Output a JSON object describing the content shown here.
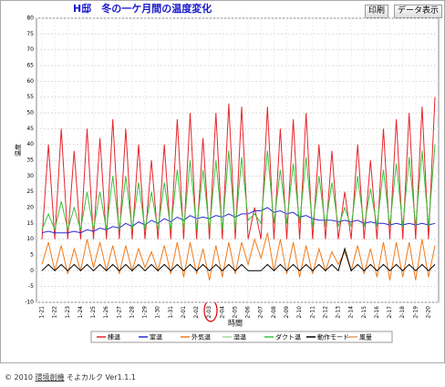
{
  "chart_data": {
    "type": "line",
    "title": "H邸　冬の一ケ月間の温度変化",
    "xlabel": "時間",
    "ylabel": "温度",
    "categories": [
      "1-21",
      null,
      "1-22",
      null,
      "1-23",
      null,
      "1-24",
      null,
      "1-25",
      null,
      "1-26",
      null,
      "1-27",
      null,
      "1-28",
      null,
      "1-29",
      null,
      "1-30",
      null,
      "1-31",
      null,
      "2-01",
      null,
      "2-02",
      null,
      "2-03",
      null,
      "2-04",
      null,
      "2-05",
      null,
      "2-06",
      null,
      "2-07",
      null,
      "2-08",
      null,
      "2-09",
      null,
      "2-10",
      null,
      "2-11",
      null,
      "2-12",
      null,
      "2-13",
      null,
      "2-14",
      null,
      "2-15",
      null,
      "2-16",
      null,
      "2-17",
      null,
      "2-18",
      null,
      "2-19",
      null,
      "2-20",
      null
    ],
    "series": [
      {
        "name": "棟温",
        "color": "#e8242a",
        "values": [
          10,
          40,
          10,
          45,
          10,
          38,
          10,
          45,
          10,
          42,
          10,
          48,
          10,
          45,
          10,
          40,
          10,
          35,
          10,
          40,
          10,
          48,
          10,
          50,
          10,
          42,
          10,
          50,
          10,
          53,
          10,
          52,
          10,
          20,
          10,
          52,
          10,
          45,
          10,
          48,
          10,
          50,
          10,
          40,
          10,
          38,
          10,
          25,
          10,
          40,
          10,
          35,
          10,
          45,
          10,
          48,
          10,
          50,
          10,
          52,
          10,
          55
        ]
      },
      {
        "name": "室温",
        "color": "#2b2bd6",
        "values": [
          12,
          12.5,
          12,
          12,
          12,
          12.5,
          12,
          13,
          12.5,
          13.5,
          13,
          14,
          13.5,
          15,
          14,
          15.5,
          14.5,
          16,
          15,
          16.5,
          15.5,
          17,
          16,
          17.5,
          16.5,
          17,
          16.5,
          17.5,
          17,
          18,
          17,
          18,
          18,
          19,
          19,
          20,
          18.5,
          19,
          18,
          18.5,
          17,
          17.5,
          16.5,
          16,
          16,
          16,
          15.5,
          16,
          15.5,
          16,
          15,
          15.5,
          15,
          15,
          14.5,
          15,
          14.5,
          15,
          14.5,
          15,
          14.5,
          15
        ]
      },
      {
        "name": "外気温",
        "color": "#f07a1a",
        "values": [
          2,
          9,
          0,
          8,
          -1,
          7,
          0,
          10,
          1,
          9,
          0,
          8,
          -1,
          8,
          0,
          7,
          1,
          6,
          0,
          8,
          -1,
          9,
          -2,
          9,
          -1,
          7,
          -3,
          8,
          -2,
          9,
          -1,
          9,
          2,
          10,
          4,
          12,
          0,
          10,
          -1,
          9,
          -2,
          8,
          -1,
          7,
          0,
          6,
          2,
          6,
          0,
          8,
          -1,
          7,
          -2,
          9,
          -3,
          9,
          -2,
          9,
          -3,
          10,
          -2,
          8
        ]
      },
      {
        "name": "湿温",
        "color": "#9fd89a",
        "values": [
          null,
          null,
          null,
          null,
          null,
          null,
          null,
          null,
          null,
          null,
          null,
          null,
          null,
          null,
          null,
          null,
          null,
          null,
          null,
          null,
          null,
          null,
          null,
          null,
          null,
          null,
          null,
          null,
          null,
          null,
          null,
          null,
          null,
          null,
          null,
          null,
          null,
          null,
          null,
          null,
          null,
          null,
          null,
          null,
          null,
          null,
          null,
          null,
          null,
          null,
          null,
          null,
          null,
          null,
          null,
          null,
          null,
          null,
          null,
          null,
          null,
          null
        ]
      },
      {
        "name": "ダクト温",
        "color": "#3cc23c",
        "values": [
          13,
          18,
          13,
          22,
          13,
          20,
          13,
          25,
          13,
          25,
          13,
          30,
          13,
          30,
          13,
          28,
          13,
          25,
          13,
          28,
          13,
          32,
          13,
          35,
          13,
          32,
          13,
          35,
          13,
          38,
          13,
          36,
          16,
          18,
          15,
          38,
          15,
          32,
          15,
          34,
          15,
          36,
          14,
          30,
          14,
          28,
          14,
          20,
          14,
          30,
          14,
          26,
          14,
          32,
          14,
          34,
          14,
          36,
          14,
          38,
          14,
          40
        ]
      },
      {
        "name": "動作モード",
        "color": "#000000",
        "values": [
          0,
          2,
          0,
          2,
          0,
          2,
          0,
          2,
          0,
          2,
          0,
          2,
          0,
          2,
          0,
          2,
          0,
          2,
          0,
          2,
          0,
          2,
          0,
          2,
          0,
          2,
          0,
          2,
          0,
          2,
          0,
          2,
          0,
          0,
          0,
          2,
          0,
          2,
          0,
          2,
          0,
          2,
          0,
          2,
          0,
          2,
          0,
          7,
          0,
          2,
          0,
          2,
          0,
          2,
          0,
          2,
          0,
          2,
          0,
          2,
          0,
          2
        ]
      },
      {
        "name": "風量",
        "color": "#e0a060",
        "values": [
          null,
          null,
          null,
          null,
          null,
          null,
          null,
          null,
          null,
          null,
          null,
          null,
          null,
          null,
          null,
          null,
          null,
          null,
          null,
          null,
          null,
          null,
          null,
          null,
          null,
          null,
          null,
          null,
          null,
          null,
          null,
          null,
          null,
          null,
          null,
          null,
          null,
          null,
          null,
          null,
          null,
          null,
          null,
          null,
          null,
          null,
          null,
          null,
          null,
          null,
          null,
          null,
          null,
          null,
          null,
          null,
          null,
          null,
          null,
          null,
          null,
          null
        ]
      }
    ],
    "ylim": [
      -10,
      80
    ],
    "yticks": [
      -10,
      -5,
      0,
      5,
      10,
      15,
      20,
      25,
      30,
      35,
      40,
      45,
      50,
      55,
      60,
      65,
      70,
      75,
      80
    ],
    "grid": true
  },
  "buttons": [
    "印刷",
    "データ表示"
  ],
  "footer": {
    "prefix": "© 2010",
    "link": "環境創機",
    "suffix": "そよカルク Ver1.1.1"
  }
}
